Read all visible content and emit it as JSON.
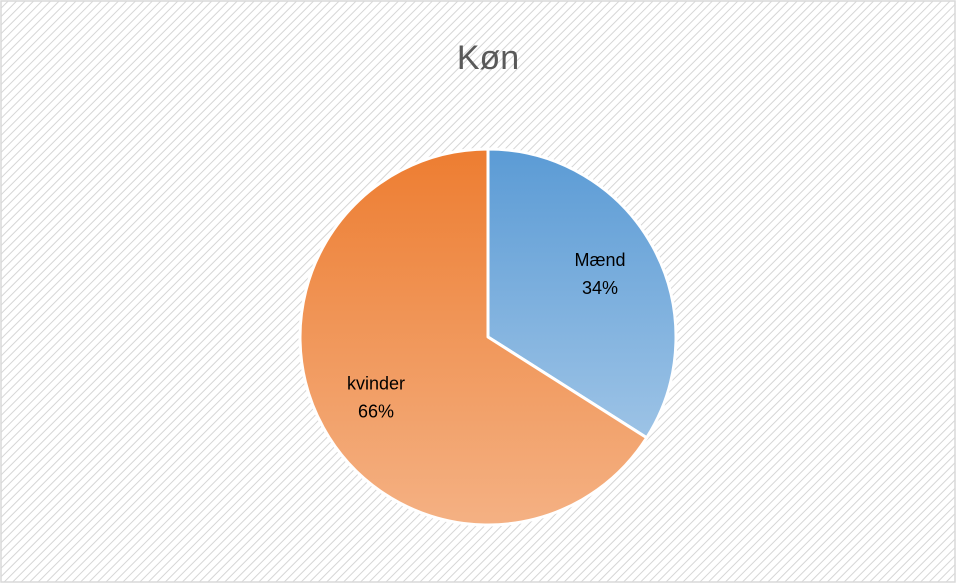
{
  "chart_data": {
    "type": "pie",
    "title": "Køn",
    "categories": [
      "Mænd",
      "kvinder"
    ],
    "values": [
      34,
      66
    ],
    "value_labels": [
      "34%",
      "66%"
    ],
    "colors": [
      "#5b9bd5",
      "#ed7d31"
    ]
  }
}
